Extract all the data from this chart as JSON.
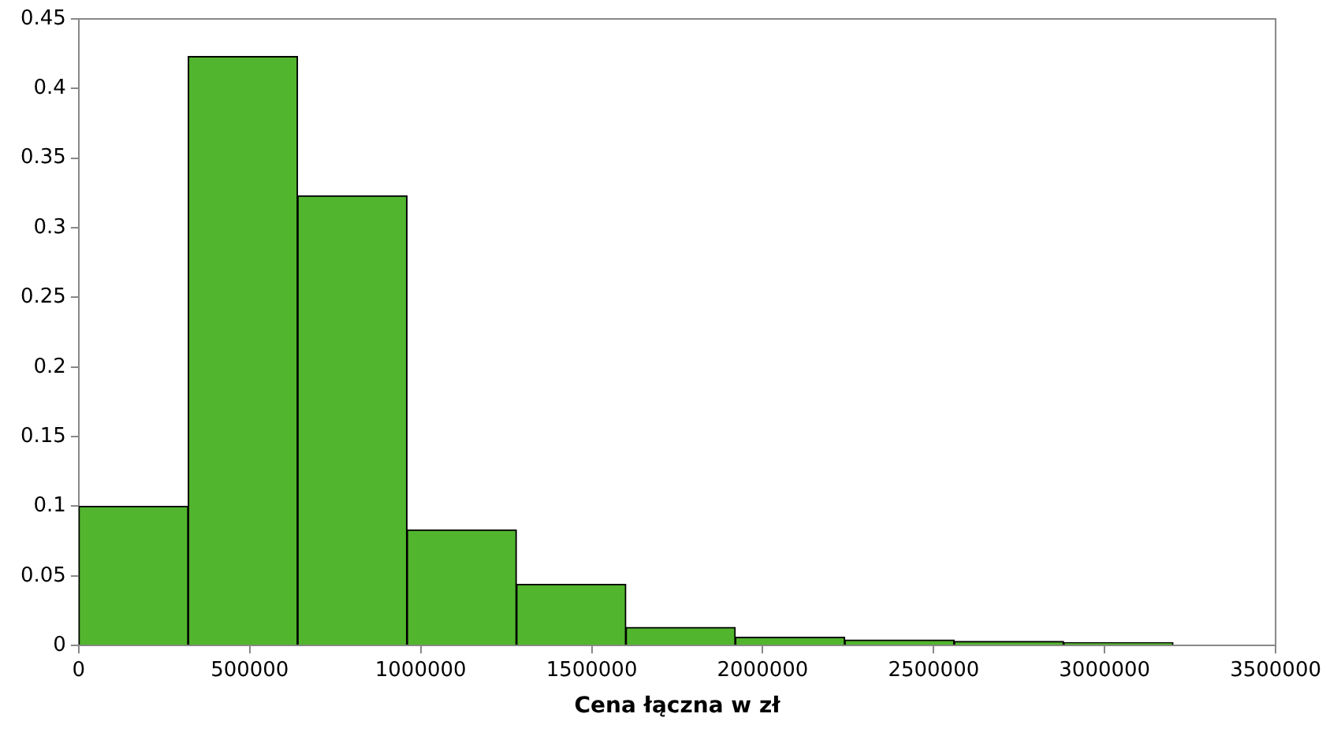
{
  "chart_data": {
    "type": "histogram",
    "xlabel": "Cena łączna w zł",
    "bins": [
      0,
      320000,
      640000,
      960000,
      1280000,
      1600000,
      1920000,
      2240000,
      2560000,
      2880000,
      3200000
    ],
    "values": [
      0.1,
      0.423,
      0.323,
      0.083,
      0.044,
      0.013,
      0.006,
      0.004,
      0.003,
      0.002
    ],
    "color": "#52b52e",
    "xlim": [
      0,
      3500000
    ],
    "xticks": [
      0,
      500000,
      1000000,
      1500000,
      2000000,
      2500000,
      3000000,
      3500000
    ],
    "ylim": [
      0,
      0.45
    ],
    "yticks": [
      0,
      0.05,
      0.1,
      0.15,
      0.2,
      0.25,
      0.3,
      0.35,
      0.4,
      0.45
    ],
    "grid": false,
    "legend": false
  }
}
